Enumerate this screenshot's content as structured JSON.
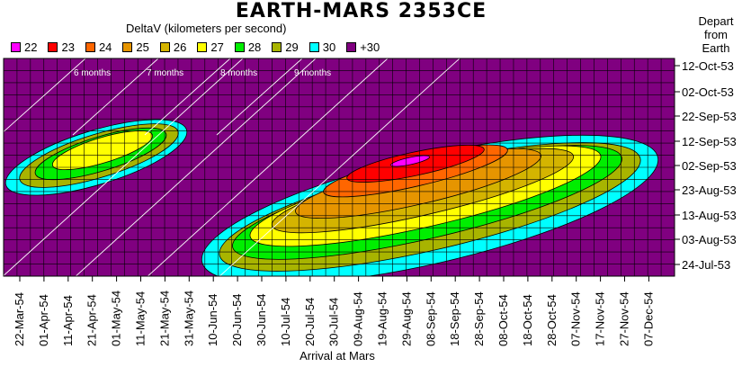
{
  "chart_data": {
    "type": "heatmap",
    "title": "EARTH-MARS 2353CE",
    "subtitle": "DeltaV (kilometers per second)",
    "xlabel": "Arrival at Mars",
    "ylabel": "Depart from Earth",
    "y_ticks": [
      "12-Oct-53",
      "02-Oct-53",
      "22-Sep-53",
      "12-Sep-53",
      "02-Sep-53",
      "23-Aug-53",
      "13-Aug-53",
      "03-Aug-53",
      "24-Jul-53"
    ],
    "x_ticks": [
      "22-Mar-54",
      "01-Apr-54",
      "11-Apr-54",
      "21-Apr-54",
      "01-May-54",
      "11-May-54",
      "21-May-54",
      "31-May-54",
      "10-Jun-54",
      "20-Jun-54",
      "30-Jun-54",
      "10-Jul-54",
      "20-Jul-54",
      "30-Jul-54",
      "09-Aug-54",
      "19-Aug-54",
      "29-Aug-54",
      "08-Sep-54",
      "18-Sep-54",
      "28-Sep-54",
      "08-Oct-54",
      "18-Oct-54",
      "28-Oct-54",
      "07-Nov-54",
      "17-Nov-54",
      "27-Nov-54",
      "07-Dec-54"
    ],
    "legend": [
      {
        "label": "22",
        "color": "#ff00ff"
      },
      {
        "label": "23",
        "color": "#ff0000"
      },
      {
        "label": "24",
        "color": "#ff6600"
      },
      {
        "label": "25",
        "color": "#e69500"
      },
      {
        "label": "26",
        "color": "#d4b400"
      },
      {
        "label": "27",
        "color": "#ffff00"
      },
      {
        "label": "28",
        "color": "#00ee00"
      },
      {
        "label": "29",
        "color": "#a8b400"
      },
      {
        "label": "30",
        "color": "#00ffff"
      },
      {
        "label": "+30",
        "color": "#800080"
      }
    ],
    "time_of_flight_labels": [
      "6 months",
      "7 months",
      "8 months",
      "9 months"
    ],
    "regions": [
      {
        "window": "7-month transfers",
        "min_deltav_band": "27",
        "arrival_range": [
          "22-Mar-54",
          "21-May-54"
        ],
        "departure_range": [
          "02-Sep-53",
          "24-Sep-53"
        ]
      },
      {
        "window": "9-month transfers",
        "min_deltav_band": "22",
        "arrival_range": [
          "31-May-54",
          "27-Nov-54"
        ],
        "departure_range": [
          "30-Jul-53",
          "12-Oct-53"
        ]
      }
    ]
  }
}
